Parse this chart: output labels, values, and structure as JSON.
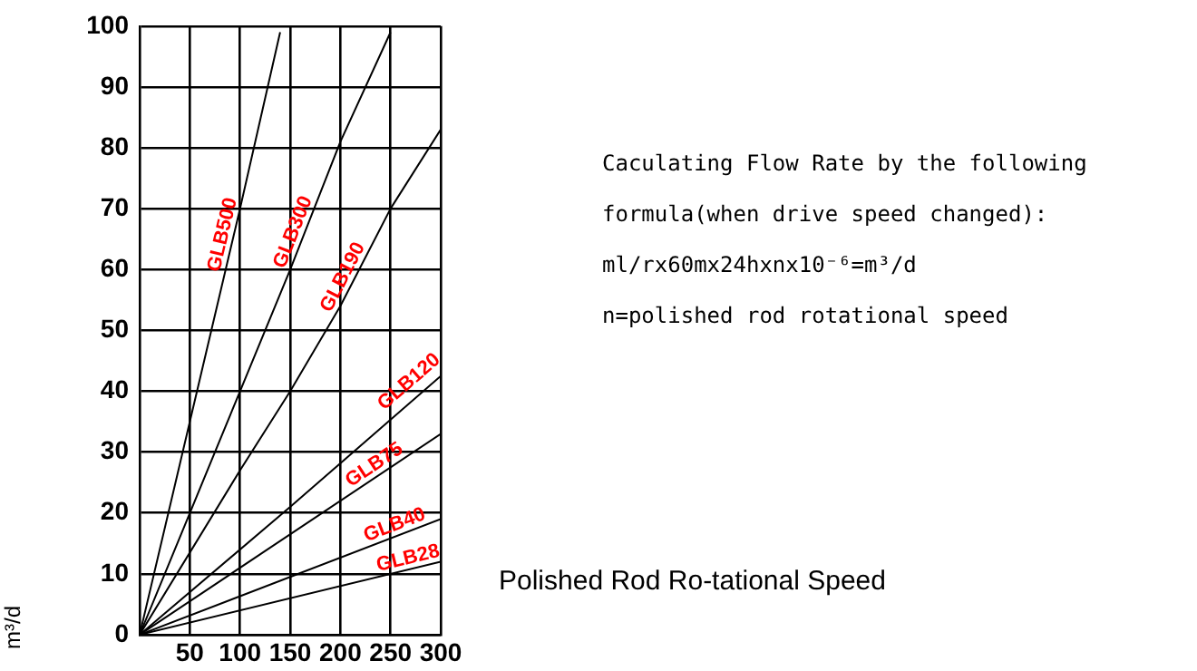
{
  "chart_data": {
    "type": "line",
    "xlabel": "Polished Rod Ro-tational Speed",
    "ylabel": "m³/d",
    "annotations": [
      "Caculating Flow Rate by the following",
      "formula(when drive speed changed):",
      "ml/rx60mx24hxnx10⁻⁶=m³/d",
      "n=polished rod rotational speed"
    ],
    "series": [
      {
        "name": "GLB500",
        "color": "#000000",
        "x": [
          0,
          100,
          140
        ],
        "values": [
          0,
          70,
          99
        ]
      },
      {
        "name": "GLB300",
        "color": "#000000",
        "x": [
          0,
          50,
          100,
          150,
          200,
          250
        ],
        "values": [
          0,
          20,
          40,
          60,
          81,
          99
        ]
      },
      {
        "name": "GLB190",
        "color": "#000000",
        "x": [
          0,
          100,
          150,
          200,
          250,
          300
        ],
        "values": [
          0,
          27,
          40,
          54,
          70,
          83
        ]
      },
      {
        "name": "GLB120",
        "color": "#000000",
        "x": [
          0,
          150,
          300
        ],
        "values": [
          0,
          21,
          42.5
        ]
      },
      {
        "name": "GLB75",
        "color": "#000000",
        "x": [
          0,
          300
        ],
        "values": [
          0,
          33
        ]
      },
      {
        "name": "GLB40",
        "color": "#000000",
        "x": [
          0,
          300
        ],
        "values": [
          0,
          19
        ]
      },
      {
        "name": "GLB28",
        "color": "#000000",
        "x": [
          0,
          300
        ],
        "values": [
          0,
          12
        ]
      }
    ],
    "xlim": [
      0,
      300
    ],
    "xticks": [
      50,
      100,
      150,
      200,
      250,
      300
    ],
    "ylim": [
      0,
      100
    ],
    "yticks": [
      0,
      10,
      20,
      30,
      40,
      50,
      60,
      70,
      80,
      90,
      100
    ],
    "grid": true,
    "legend": false,
    "marker": "none",
    "line_style": "solid"
  }
}
